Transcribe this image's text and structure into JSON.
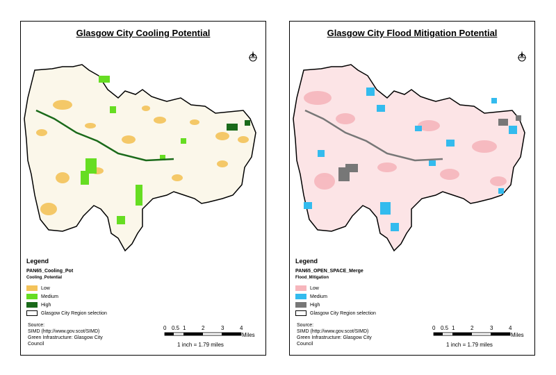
{
  "left_map": {
    "title": "Glasgow City Cooling Potential",
    "legend": {
      "heading": "Legend",
      "layer": "PAN65_Cooling_Pot",
      "field": "Cooling_Potential",
      "items": [
        {
          "label": "Low",
          "color": "#f4c35a"
        },
        {
          "label": "Medium",
          "color": "#66dd22"
        },
        {
          "label": "High",
          "color": "#1a6a1a"
        }
      ],
      "selection_label": "Glasgow City Region selection"
    },
    "source": [
      "Source:",
      "SIMD (http://www.gov.scot/SIMD)",
      "Green Infrastructure: Glasgow City",
      "Council"
    ],
    "scale": {
      "ticks": [
        "0",
        "0.5",
        "1",
        "2",
        "3",
        "4"
      ],
      "unit": "Miles",
      "ratio": "1 inch = 1.79 miles"
    }
  },
  "right_map": {
    "title": "Glasgow City Flood Mitigation Potential",
    "legend": {
      "heading": "Legend",
      "layer": "PAN65_OPEN_SPACE_Merge",
      "field": "Flood_Mitigation",
      "items": [
        {
          "label": "Low",
          "color": "#f6b6bc"
        },
        {
          "label": "Medium",
          "color": "#33bbee"
        },
        {
          "label": "High",
          "color": "#777777"
        }
      ],
      "selection_label": "Glasgow City Region selection"
    },
    "source": [
      "Source:",
      "SIMD (http://www.gov.scot/SIMD)",
      "Green Infrastructure: Glasgow City",
      "Council"
    ],
    "scale": {
      "ticks": [
        "0",
        "0.5",
        "1",
        "2",
        "3",
        "4"
      ],
      "unit": "Miles",
      "ratio": "1 inch = 1.79 miles"
    }
  }
}
